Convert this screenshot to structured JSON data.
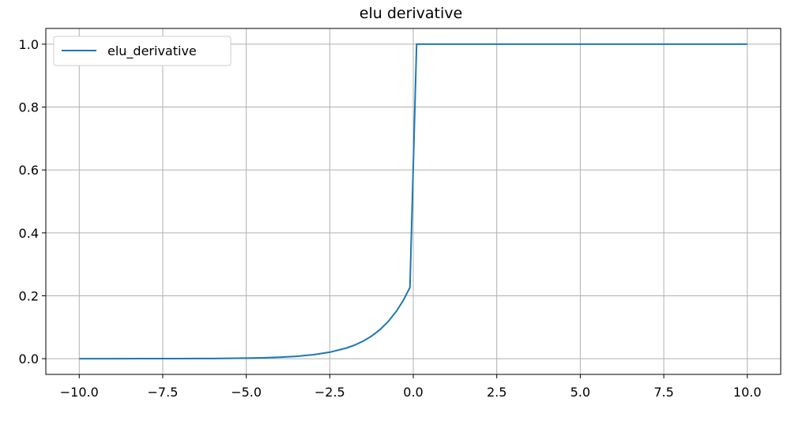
{
  "chart_data": {
    "type": "line",
    "title": "elu derivative",
    "x": [
      -10,
      -9,
      -8,
      -7,
      -6,
      -5,
      -4.5,
      -4,
      -3.5,
      -3,
      -2.5,
      -2,
      -1.75,
      -1.5,
      -1.25,
      -1,
      -0.75,
      -0.5,
      -0.3,
      -0.1,
      0.1,
      10
    ],
    "series": [
      {
        "name": "elu_derivative",
        "color": "#1f77b4",
        "values": [
          1e-05,
          3e-05,
          8e-05,
          0.00023,
          0.00062,
          0.00168,
          0.00278,
          0.00458,
          0.00755,
          0.01245,
          0.02052,
          0.03383,
          0.04344,
          0.05578,
          0.07163,
          0.09197,
          0.1181,
          0.1516,
          0.1852,
          0.2262,
          1,
          1
        ]
      }
    ],
    "xlim": [
      -11,
      11
    ],
    "ylim": [
      -0.05,
      1.05
    ],
    "xticks": [
      {
        "value": -10,
        "label": "−10.0"
      },
      {
        "value": -7.5,
        "label": "−7.5"
      },
      {
        "value": -5,
        "label": "−5.0"
      },
      {
        "value": -2.5,
        "label": "−2.5"
      },
      {
        "value": 0,
        "label": "0.0"
      },
      {
        "value": 2.5,
        "label": "2.5"
      },
      {
        "value": 5,
        "label": "5.0"
      },
      {
        "value": 7.5,
        "label": "7.5"
      },
      {
        "value": 10,
        "label": "10.0"
      }
    ],
    "yticks": [
      {
        "value": 0,
        "label": "0.0"
      },
      {
        "value": 0.2,
        "label": "0.2"
      },
      {
        "value": 0.4,
        "label": "0.4"
      },
      {
        "value": 0.6,
        "label": "0.6"
      },
      {
        "value": 0.8,
        "label": "0.8"
      },
      {
        "value": 1,
        "label": "1.0"
      }
    ],
    "grid": true,
    "legend": "upper left"
  }
}
